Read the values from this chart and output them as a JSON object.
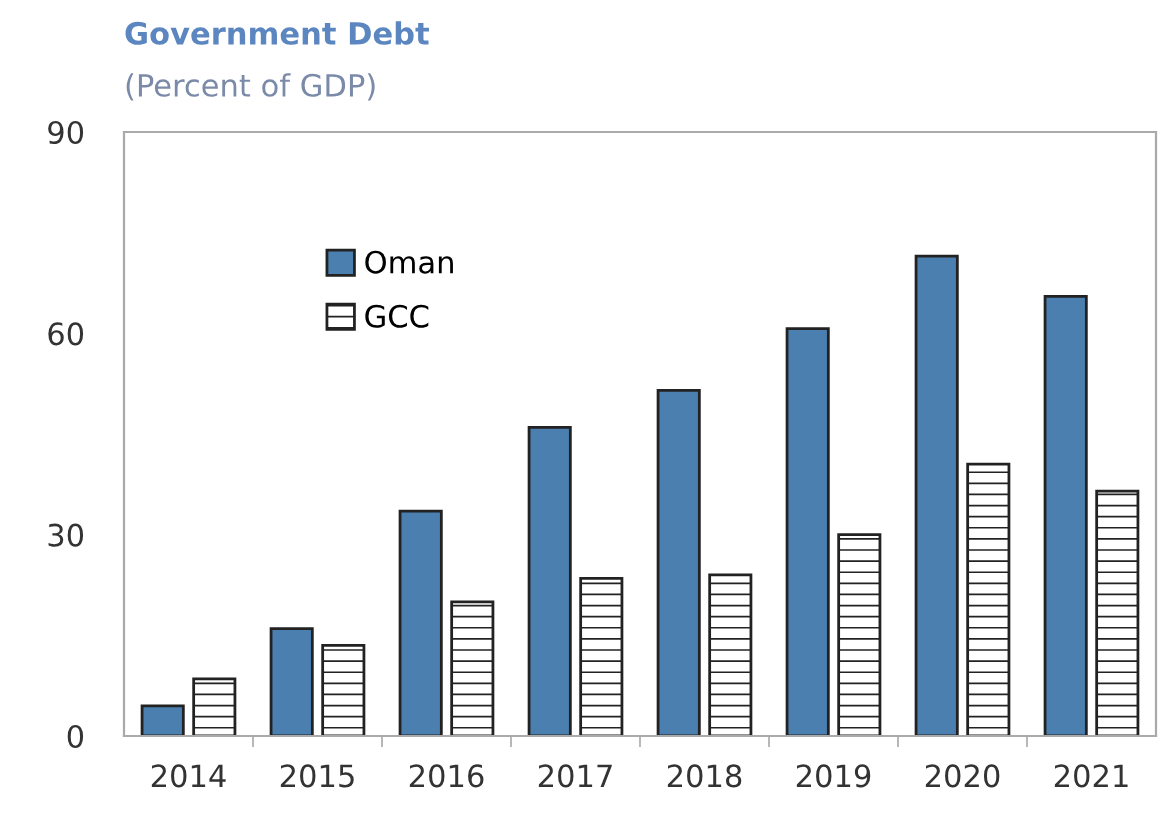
{
  "chart_data": {
    "type": "bar",
    "title": "Government Debt",
    "subtitle": "(Percent of GDP)",
    "categories": [
      "2014",
      "2015",
      "2016",
      "2017",
      "2018",
      "2019",
      "2020",
      "2021"
    ],
    "series": [
      {
        "name": "Oman",
        "color": "#4a7fb0",
        "values": [
          4.5,
          16,
          33.5,
          46,
          51.5,
          60.7,
          71.5,
          65.5
        ]
      },
      {
        "name": "GCC",
        "color": "#222222",
        "values": [
          8.5,
          13.5,
          20,
          23.5,
          24,
          30,
          40.5,
          36.5
        ]
      }
    ],
    "ylim": [
      0,
      90
    ],
    "yticks": [
      0,
      30,
      60,
      90
    ],
    "grid": false,
    "legend": "top left"
  }
}
